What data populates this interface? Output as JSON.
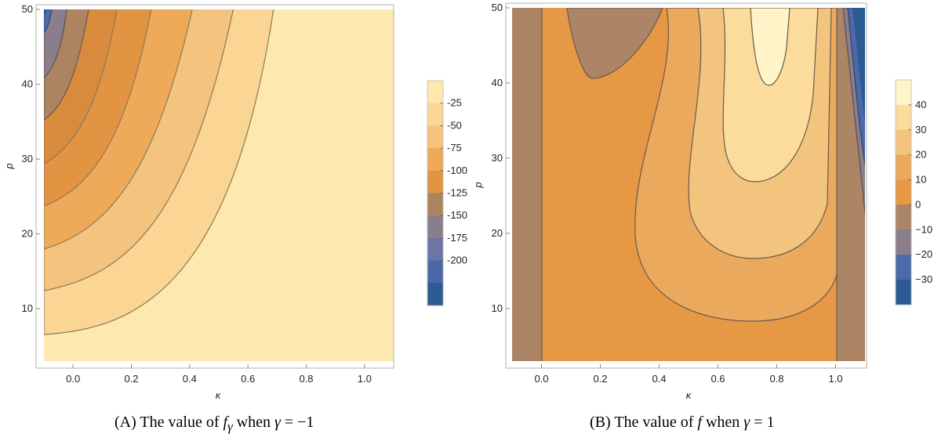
{
  "chart_data": [
    {
      "type": "contour",
      "xlabel": "κ",
      "ylabel": "p",
      "xlim": [
        -0.1,
        1.1
      ],
      "ylim": [
        3,
        50
      ],
      "x_ticks": [
        "0.0",
        "0.2",
        "0.4",
        "0.6",
        "0.8",
        "1.0"
      ],
      "y_ticks": [
        "10",
        "20",
        "30",
        "40",
        "50"
      ],
      "x_tick_values": [
        0.0,
        0.2,
        0.4,
        0.6,
        0.8,
        1.0
      ],
      "y_tick_values": [
        10,
        20,
        30,
        40,
        50
      ],
      "legend": {
        "labels": [
          "-25",
          "-50",
          "-75",
          "-100",
          "-125",
          "-150",
          "-175",
          "-200"
        ],
        "colors": [
          "#fde8ad",
          "#fbd593",
          "#f4c37e",
          "#eeaa58",
          "#e39442",
          "#ac8462",
          "#8b7e8c",
          "#6e75a6",
          "#4a68a8",
          "#2b5b92"
        ]
      },
      "contour_levels": [
        -25,
        -50,
        -75,
        -100,
        -125,
        -150,
        -175,
        -200
      ],
      "caption": {
        "prefix": "(",
        "letter": "A",
        "middle": ") The value of ",
        "func": "f",
        "sub": "γ",
        "when": " when ",
        "gamma": "γ",
        "eq": " = −1"
      }
    },
    {
      "type": "contour",
      "xlabel": "κ",
      "ylabel": "p",
      "xlim": [
        -0.1,
        1.1
      ],
      "ylim": [
        3,
        50
      ],
      "x_ticks": [
        "0.0",
        "0.2",
        "0.4",
        "0.6",
        "0.8",
        "1.0"
      ],
      "y_ticks": [
        "10",
        "20",
        "30",
        "40",
        "50"
      ],
      "x_tick_values": [
        0.0,
        0.2,
        0.4,
        0.6,
        0.8,
        1.0
      ],
      "y_tick_values": [
        10,
        20,
        30,
        40,
        50
      ],
      "legend": {
        "labels": [
          "40",
          "30",
          "20",
          "10",
          "0",
          "−10",
          "−20",
          "−30"
        ],
        "colors": [
          "#fef4c8",
          "#fbdc9c",
          "#f3c47e",
          "#eba95d",
          "#e69845",
          "#ac8566",
          "#8b7e8c",
          "#4a6aaa",
          "#2b5b92"
        ]
      },
      "contour_levels": [
        40,
        30,
        20,
        10,
        0,
        -10,
        -20,
        -30
      ],
      "caption": {
        "prefix": "(",
        "letter": "B",
        "middle": ") The value of ",
        "func": "f",
        "when": " when ",
        "gamma": "γ",
        "eq": " = 1"
      }
    }
  ]
}
